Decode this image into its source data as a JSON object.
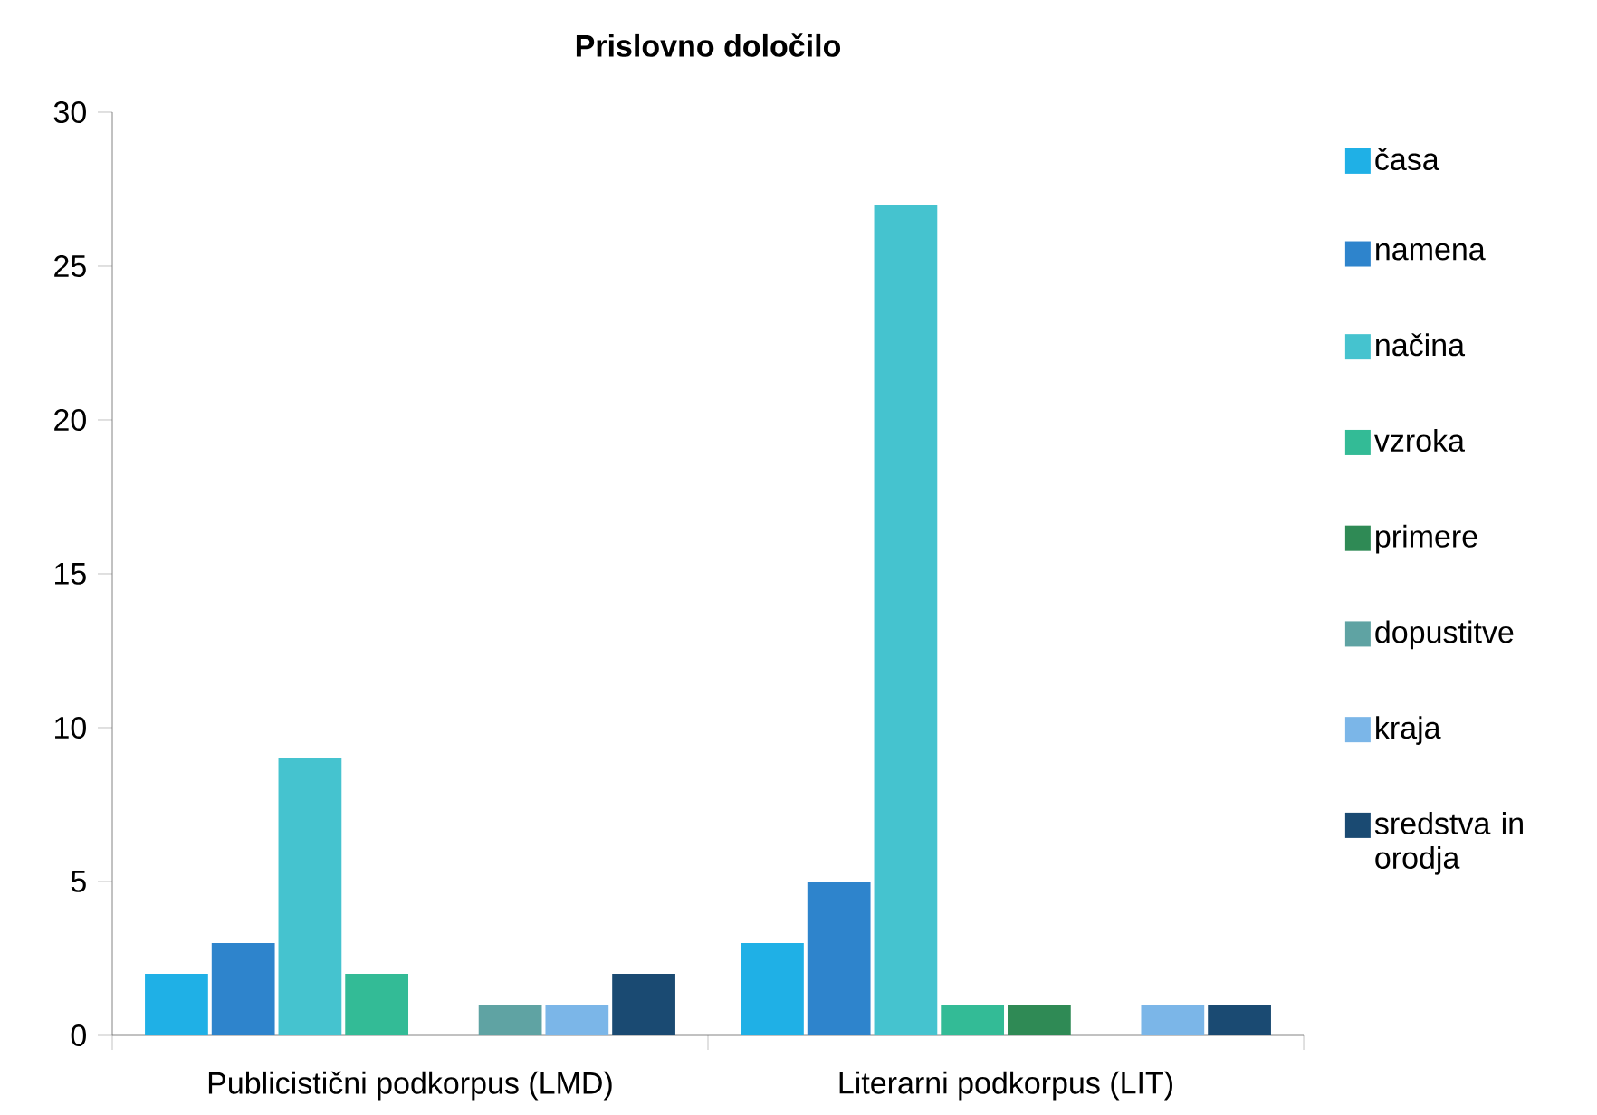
{
  "chart_data": {
    "type": "bar",
    "title": "Prislovno določilo",
    "categories": [
      "Publicistični podkorpus (LMD)",
      "Literarni podkorpus (LIT)"
    ],
    "series": [
      {
        "name": "časa",
        "color": "#1fb0e6",
        "values": [
          2,
          3
        ]
      },
      {
        "name": "namena",
        "color": "#2e84cc",
        "values": [
          3,
          5
        ]
      },
      {
        "name": "načina",
        "color": "#45c3cf",
        "values": [
          9,
          27
        ]
      },
      {
        "name": "vzroka",
        "color": "#33bb96",
        "values": [
          2,
          1
        ]
      },
      {
        "name": "primere",
        "color": "#2f8a55",
        "values": [
          0,
          1
        ]
      },
      {
        "name": "dopustitve",
        "color": "#5fa3a3",
        "values": [
          1,
          0
        ]
      },
      {
        "name": "kraja",
        "color": "#7bb6e8",
        "values": [
          1,
          1
        ]
      },
      {
        "name": "sredstva in orodja",
        "color": "#1a4a72",
        "values": [
          2,
          1
        ]
      }
    ],
    "ylim": [
      0,
      30
    ],
    "yticks": [
      0,
      5,
      10,
      15,
      20,
      25,
      30
    ],
    "legend": "right"
  }
}
